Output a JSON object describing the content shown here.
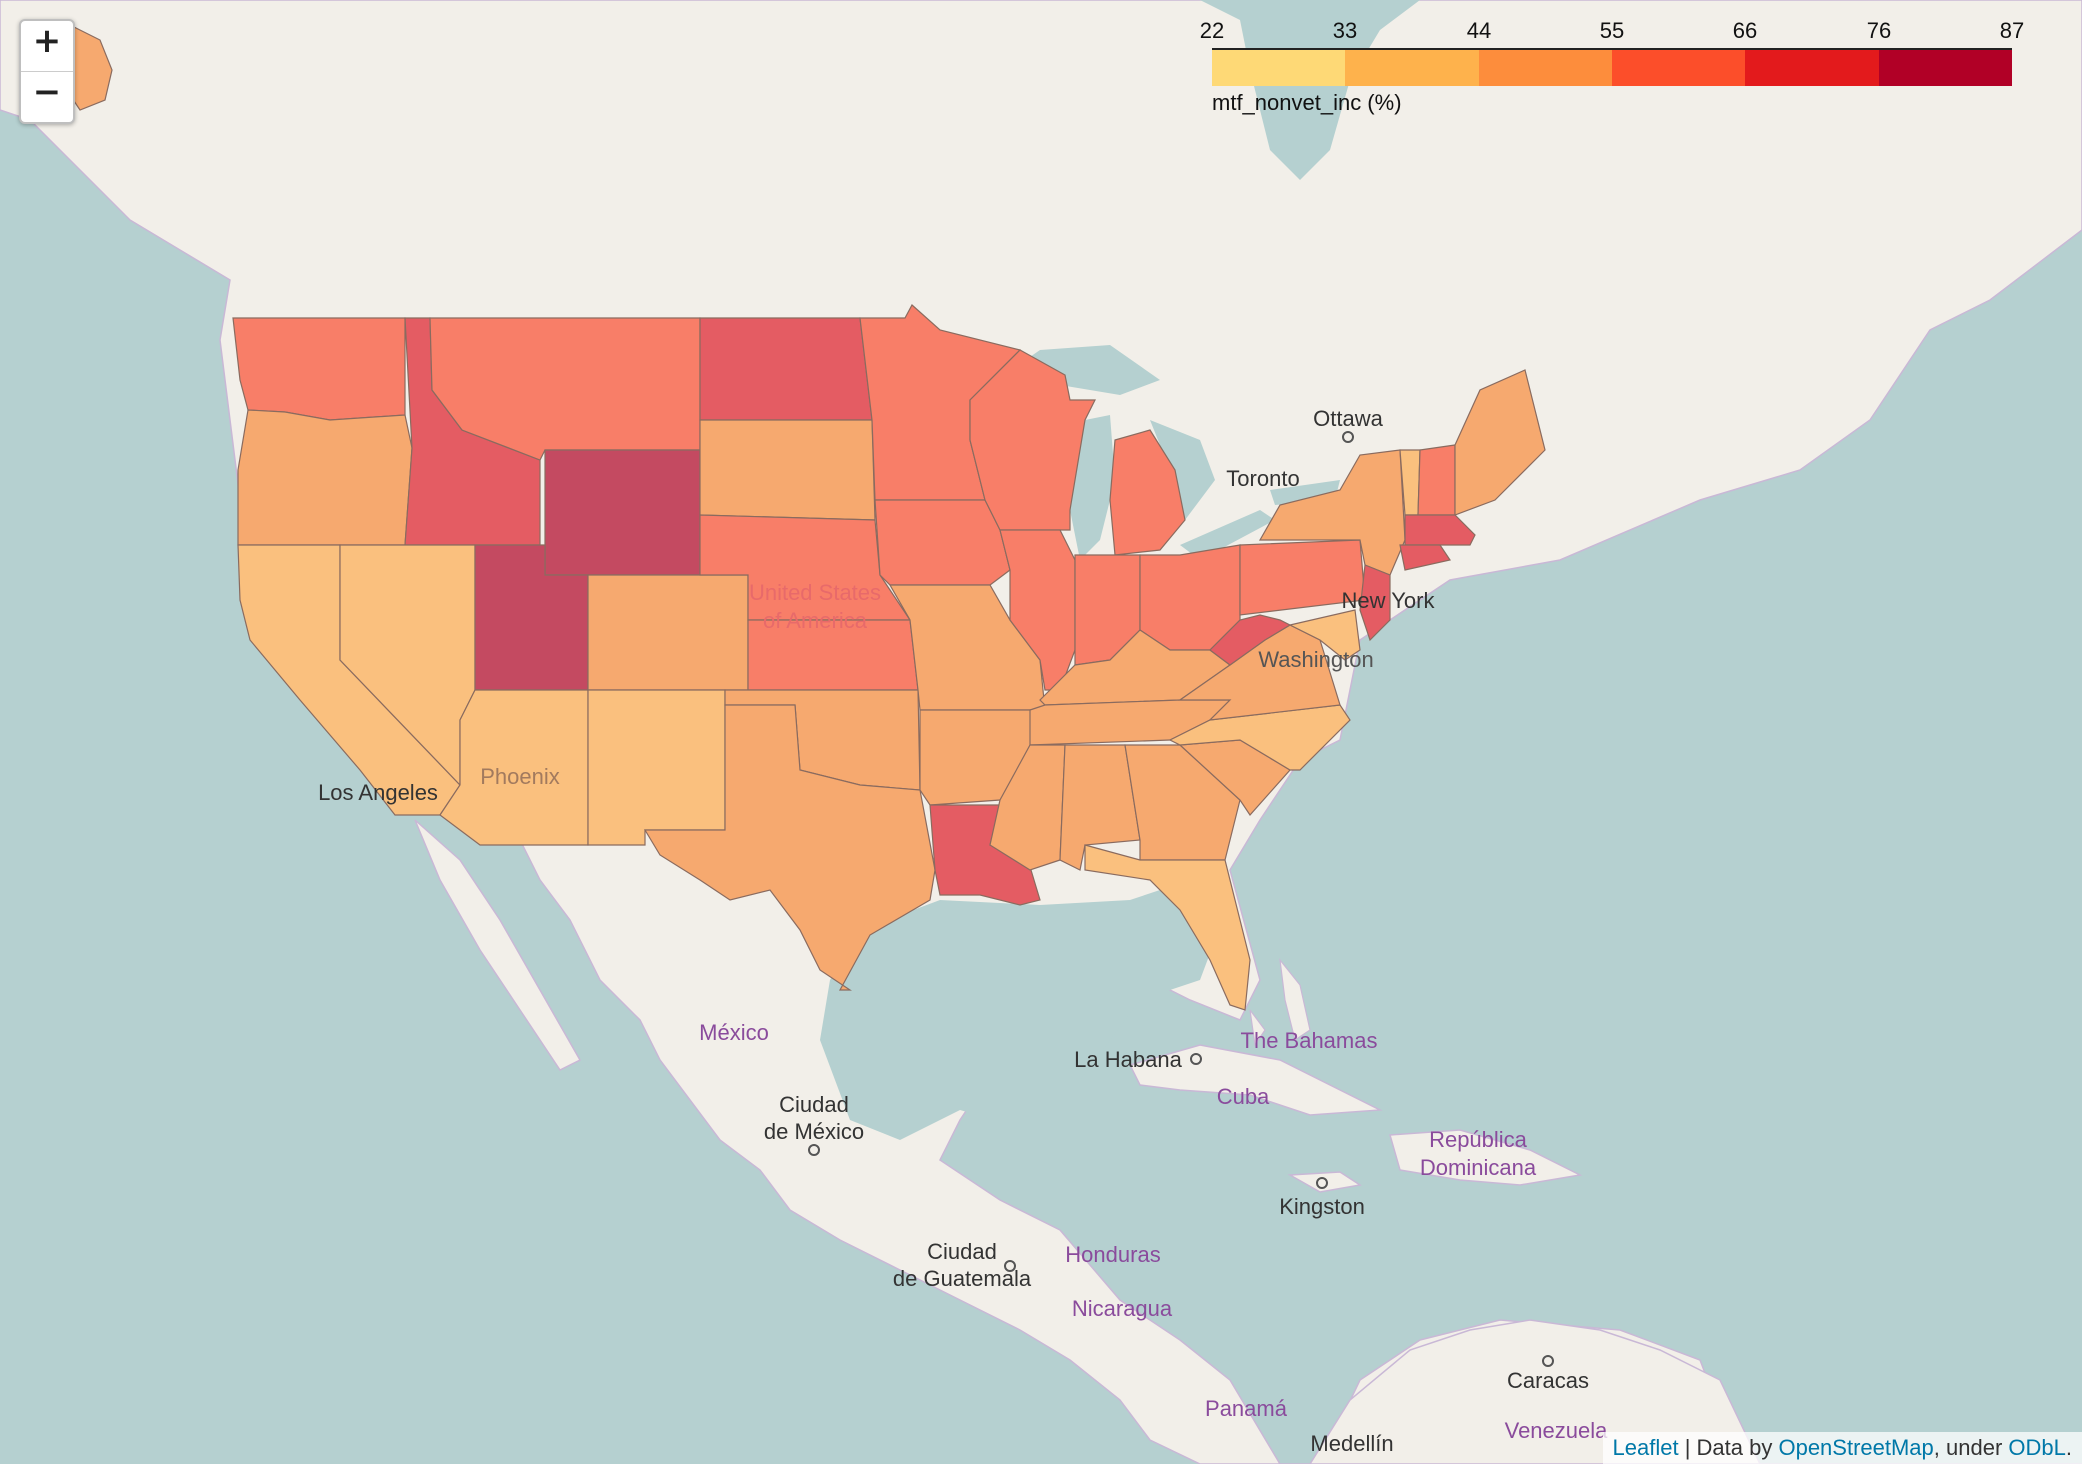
{
  "zoom": {
    "in_label": "+",
    "out_label": "−"
  },
  "legend": {
    "title": "mtf_nonvet_inc (%)",
    "ticks": [
      "22",
      "33",
      "44",
      "55",
      "66",
      "76",
      "87"
    ],
    "colors": [
      "#fed976",
      "#feb24c",
      "#fd8d3c",
      "#fc4e2a",
      "#e31a1c",
      "#b10026"
    ]
  },
  "labels": {
    "ottawa": "Ottawa",
    "toronto": "Toronto",
    "new_york": "New York",
    "washington": "Washington",
    "usa_1": "United States",
    "usa_2": "of America",
    "phoenix": "Phoenix",
    "los_angeles": "Los Angeles",
    "mexico": "México",
    "ciudad_mexico_1": "Ciudad",
    "ciudad_mexico_2": "de México",
    "la_habana": "La Habana",
    "bahamas": "The Bahamas",
    "cuba": "Cuba",
    "republica_1": "República",
    "republica_2": "Dominicana",
    "kingston": "Kingston",
    "ciudad_guatemala_1": "Ciudad",
    "ciudad_guatemala_2": "de Guatemala",
    "honduras": "Honduras",
    "nicaragua": "Nicaragua",
    "panama": "Panamá",
    "caracas": "Caracas",
    "venezuela": "Venezuela",
    "medellin": "Medellín"
  },
  "attribution": {
    "leaflet": "Leaflet",
    "sep": " | Data by ",
    "osm": "OpenStreetMap",
    "under": ", under ",
    "odbl": "ODbL",
    "end": "."
  }
}
